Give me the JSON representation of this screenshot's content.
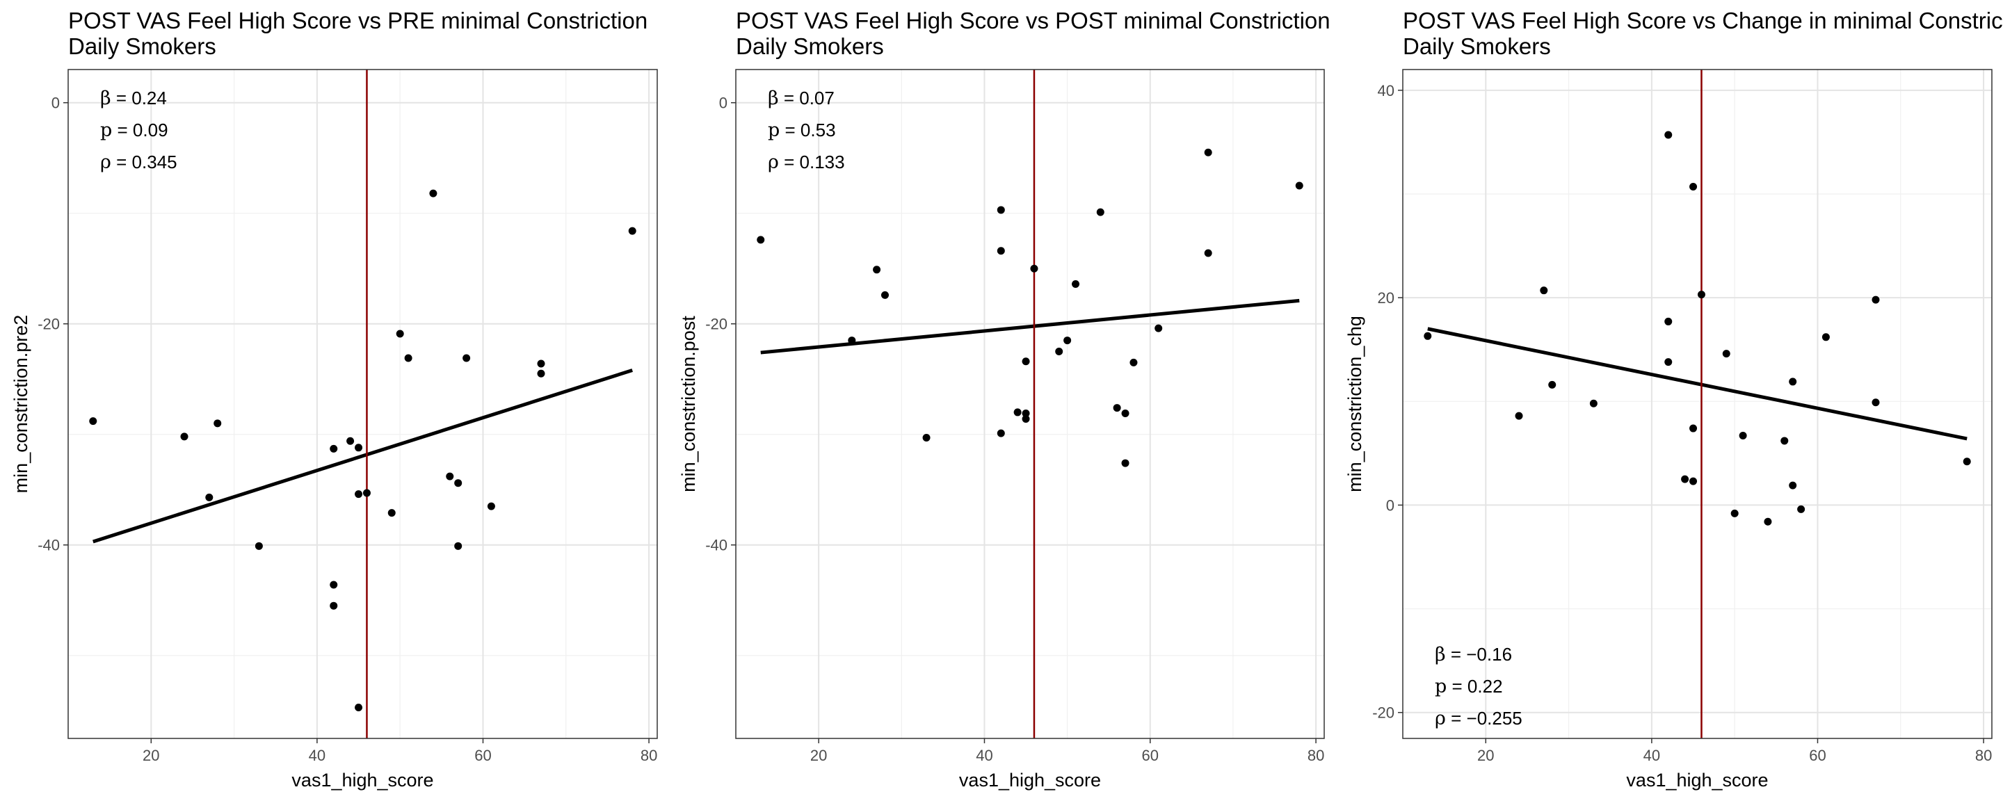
{
  "chart_data": [
    {
      "type": "scatter",
      "title": "POST VAS Feel High Score vs PRE minimal Constriction",
      "subtitle": "Daily Smokers",
      "xlabel": "vas1_high_score",
      "ylabel": "min_constriction.pre2",
      "xlim": [
        10,
        81
      ],
      "ylim": [
        -57.5,
        3
      ],
      "xticks": [
        20,
        40,
        60,
        80
      ],
      "yticks": [
        0,
        -20,
        -40
      ],
      "grid": true,
      "vline": 46,
      "colors": {
        "points": "#000000",
        "line": "#000000",
        "vline": "#8b0000"
      },
      "fit": {
        "x": [
          13,
          78
        ],
        "y": [
          -39.7,
          -24.2
        ]
      },
      "stats": {
        "beta": "0.24",
        "p": "0.09",
        "rho": "0.345"
      },
      "stats_position": "top-left",
      "points": [
        {
          "x": 13,
          "y": -28.8
        },
        {
          "x": 24,
          "y": -30.2
        },
        {
          "x": 27,
          "y": -35.7
        },
        {
          "x": 28,
          "y": -29.0
        },
        {
          "x": 33,
          "y": -40.1
        },
        {
          "x": 42,
          "y": -31.3
        },
        {
          "x": 42,
          "y": -43.6
        },
        {
          "x": 42,
          "y": -45.5
        },
        {
          "x": 44,
          "y": -30.6
        },
        {
          "x": 45,
          "y": -31.2
        },
        {
          "x": 45,
          "y": -35.4
        },
        {
          "x": 45,
          "y": -54.7
        },
        {
          "x": 46,
          "y": -35.3
        },
        {
          "x": 49,
          "y": -37.1
        },
        {
          "x": 50,
          "y": -20.9
        },
        {
          "x": 51,
          "y": -23.1
        },
        {
          "x": 54,
          "y": -8.2
        },
        {
          "x": 56,
          "y": -33.8
        },
        {
          "x": 57,
          "y": -34.4
        },
        {
          "x": 57,
          "y": -40.1
        },
        {
          "x": 58,
          "y": -23.1
        },
        {
          "x": 61,
          "y": -36.5
        },
        {
          "x": 67,
          "y": -23.6
        },
        {
          "x": 67,
          "y": -24.5
        },
        {
          "x": 78,
          "y": -11.6
        }
      ]
    },
    {
      "type": "scatter",
      "title": "POST VAS Feel High Score vs POST minimal Constriction",
      "subtitle": "Daily Smokers",
      "xlabel": "vas1_high_score",
      "ylabel": "min_constriction.post",
      "xlim": [
        10,
        81
      ],
      "ylim": [
        -57.5,
        3
      ],
      "xticks": [
        20,
        40,
        60,
        80
      ],
      "yticks": [
        0,
        -20,
        -40
      ],
      "grid": true,
      "vline": 46,
      "colors": {
        "points": "#000000",
        "line": "#000000",
        "vline": "#8b0000"
      },
      "fit": {
        "x": [
          13,
          78
        ],
        "y": [
          -22.6,
          -17.9
        ]
      },
      "stats": {
        "beta": "0.07",
        "p": "0.53",
        "rho": "0.133"
      },
      "stats_position": "top-left",
      "points": [
        {
          "x": 13,
          "y": -12.4
        },
        {
          "x": 24,
          "y": -21.5
        },
        {
          "x": 27,
          "y": -15.1
        },
        {
          "x": 28,
          "y": -17.4
        },
        {
          "x": 33,
          "y": -30.3
        },
        {
          "x": 42,
          "y": -9.7
        },
        {
          "x": 42,
          "y": -13.4
        },
        {
          "x": 42,
          "y": -29.9
        },
        {
          "x": 44,
          "y": -28.0
        },
        {
          "x": 45,
          "y": -28.1
        },
        {
          "x": 45,
          "y": -28.6
        },
        {
          "x": 45,
          "y": -23.4
        },
        {
          "x": 46,
          "y": -15.0
        },
        {
          "x": 49,
          "y": -22.5
        },
        {
          "x": 50,
          "y": -21.5
        },
        {
          "x": 51,
          "y": -16.4
        },
        {
          "x": 54,
          "y": -9.9
        },
        {
          "x": 56,
          "y": -27.6
        },
        {
          "x": 57,
          "y": -28.1
        },
        {
          "x": 57,
          "y": -32.6
        },
        {
          "x": 58,
          "y": -23.5
        },
        {
          "x": 61,
          "y": -20.4
        },
        {
          "x": 67,
          "y": -4.5
        },
        {
          "x": 67,
          "y": -13.6
        },
        {
          "x": 78,
          "y": -7.5
        }
      ]
    },
    {
      "type": "scatter",
      "title": "POST VAS Feel High Score vs Change in minimal Constriction",
      "subtitle": "Daily Smokers",
      "xlabel": "vas1_high_score",
      "ylabel": "min_constriction_chg",
      "xlim": [
        10,
        81
      ],
      "ylim": [
        -22.5,
        42
      ],
      "xticks": [
        20,
        40,
        60,
        80
      ],
      "yticks": [
        40,
        20,
        0,
        -20
      ],
      "grid": true,
      "vline": 46,
      "colors": {
        "points": "#000000",
        "line": "#000000",
        "vline": "#8b0000"
      },
      "fit": {
        "x": [
          13,
          78
        ],
        "y": [
          17.0,
          6.4
        ]
      },
      "stats": {
        "beta": "−0.16",
        "p": "0.22",
        "rho": "−0.255"
      },
      "stats_position": "bottom-left",
      "points": [
        {
          "x": 13,
          "y": 16.3
        },
        {
          "x": 24,
          "y": 8.6
        },
        {
          "x": 27,
          "y": 20.7
        },
        {
          "x": 28,
          "y": 11.6
        },
        {
          "x": 33,
          "y": 9.8
        },
        {
          "x": 42,
          "y": 35.7
        },
        {
          "x": 42,
          "y": 17.7
        },
        {
          "x": 42,
          "y": 13.8
        },
        {
          "x": 44,
          "y": 2.5
        },
        {
          "x": 45,
          "y": 30.7
        },
        {
          "x": 45,
          "y": 7.4
        },
        {
          "x": 45,
          "y": 2.3
        },
        {
          "x": 46,
          "y": 20.3
        },
        {
          "x": 49,
          "y": 14.6
        },
        {
          "x": 50,
          "y": -0.8
        },
        {
          "x": 51,
          "y": 6.7
        },
        {
          "x": 54,
          "y": -1.6
        },
        {
          "x": 56,
          "y": 6.2
        },
        {
          "x": 57,
          "y": 11.9
        },
        {
          "x": 57,
          "y": 1.9
        },
        {
          "x": 58,
          "y": -0.4
        },
        {
          "x": 61,
          "y": 16.2
        },
        {
          "x": 67,
          "y": 19.8
        },
        {
          "x": 67,
          "y": 9.9
        },
        {
          "x": 78,
          "y": 4.2
        }
      ]
    }
  ]
}
